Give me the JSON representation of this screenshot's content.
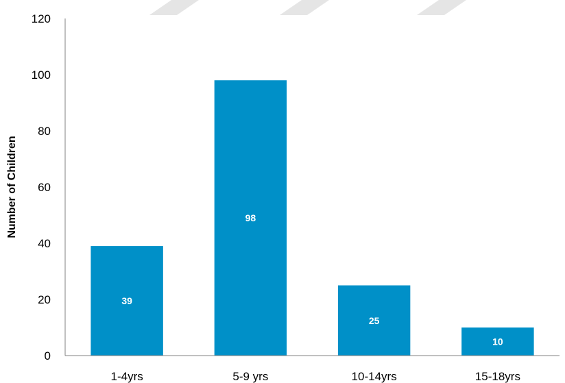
{
  "chart_data": {
    "type": "bar",
    "title": "",
    "xlabel": "",
    "ylabel": "Number of Children",
    "categories": [
      "1-4yrs",
      "5-9 yrs",
      "10-14yrs",
      "15-18yrs"
    ],
    "values": [
      39,
      98,
      25,
      10
    ],
    "data_labels": [
      "39",
      "98",
      "25",
      "10"
    ],
    "ylim": [
      0,
      120
    ],
    "yticks": [
      "0",
      "20",
      "40",
      "60",
      "80",
      "100",
      "120"
    ],
    "grid": false,
    "legend": "none",
    "bar_color": "#0090C8",
    "data_label_color": "#FFFFFF"
  }
}
